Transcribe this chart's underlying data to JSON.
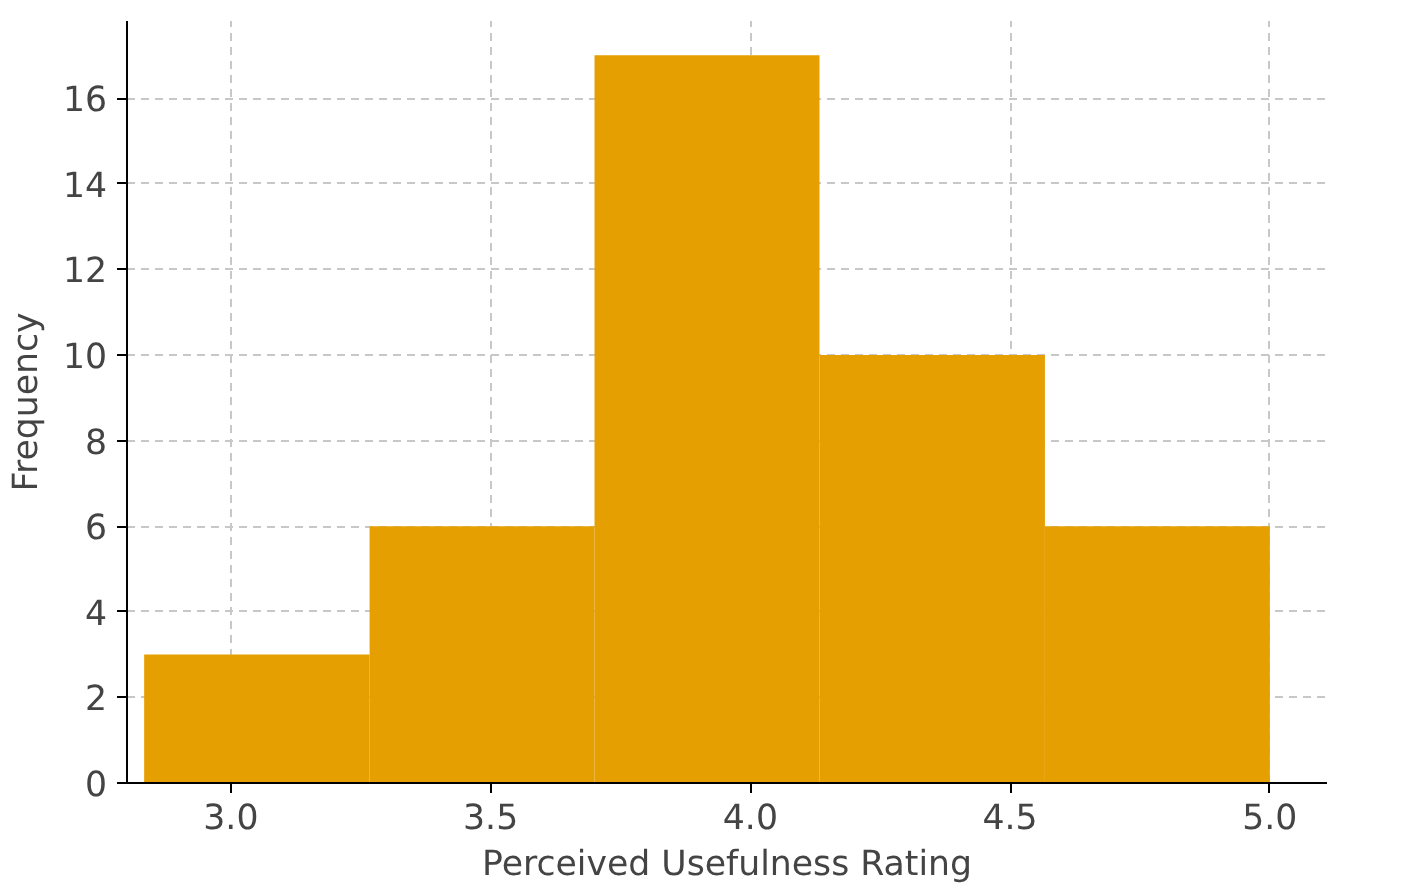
{
  "chart_data": {
    "type": "histogram",
    "xlabel": "Perceived Usefulness Rating",
    "ylabel": "Frequency",
    "bins": [
      2.833,
      3.267,
      3.7,
      4.133,
      4.567,
      5.0
    ],
    "values": [
      3,
      6,
      17,
      10,
      6
    ],
    "color": "#e69f00",
    "xlim": [
      2.8,
      5.11
    ],
    "ylim": [
      0,
      17.8
    ],
    "xticks": [
      {
        "value": 3.0,
        "label": "3.0"
      },
      {
        "value": 3.5,
        "label": "3.5"
      },
      {
        "value": 4.0,
        "label": "4.0"
      },
      {
        "value": 4.5,
        "label": "4.5"
      },
      {
        "value": 5.0,
        "label": "5.0"
      }
    ],
    "yticks": [
      0,
      2,
      4,
      6,
      8,
      10,
      12,
      14,
      16
    ],
    "grid": true
  }
}
